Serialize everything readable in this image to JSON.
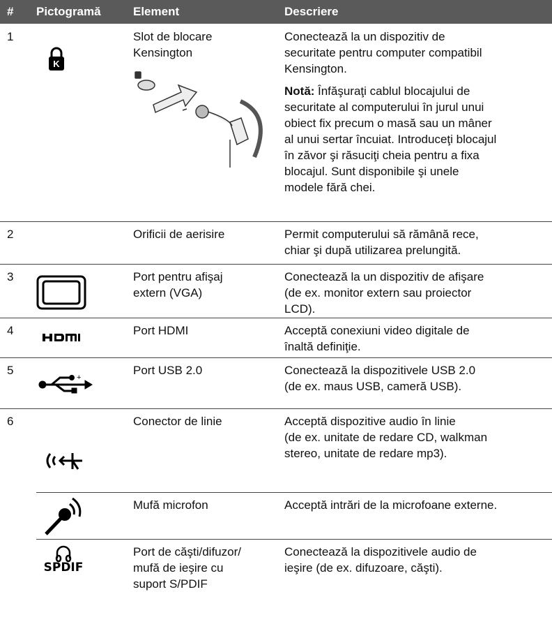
{
  "table": {
    "header": [
      "#",
      "Pictogramă",
      "Element",
      "Descriere"
    ],
    "rows": [
      {
        "number": 1,
        "element": [
          "Slot de blocare",
          "Kensington"
        ],
        "description": [
          "Conectează la un dispozitiv de",
          "securitate pentru computer compatibil",
          "Kensington."
        ],
        "note_label": "Notă:",
        "note": [
          "Înfăşuraţi cablul blocajului de",
          "securitate al computerului în jurul unui",
          "obiect fix precum o masă sau un mâner",
          "al unui sertar încuiat. Introduceţi blocajul",
          "în zăvor şi răsuciţi cheia pentru a fixa",
          "blocajul. Sunt disponibile şi unele",
          "modele fără chei."
        ]
      },
      {
        "number": 2,
        "element": [
          "Orificii de aerisire"
        ],
        "description": [
          "Permit computerului să rămână rece,",
          "chiar şi după utilizarea prelungită."
        ]
      },
      {
        "number": 3,
        "element": [
          "Port pentru afişaj",
          "extern (VGA)"
        ],
        "description": [
          "Conectează la un dispozitiv de afişare",
          "(de ex. monitor extern sau proiector",
          "LCD)."
        ]
      },
      {
        "number": 4,
        "element": [
          "Port HDMI"
        ],
        "description": [
          "Acceptă conexiuni video digitale de",
          "înaltă definiţie."
        ]
      },
      {
        "number": 5,
        "element": [
          "Port USB 2.0"
        ],
        "description": [
          "Conectează la dispozitivele USB 2.0",
          "(de ex. maus USB, cameră USB)."
        ]
      },
      {
        "number": 6,
        "element": [
          "Conector de linie"
        ],
        "description": [
          "Acceptă dispozitive audio în linie",
          "(de ex. unitate de redare CD, walkman",
          "stereo, unitate de redare mp3)."
        ]
      },
      {
        "element": [
          "Mufă microfon"
        ],
        "description": [
          "Acceptă intrări de la microfoane externe."
        ]
      },
      {
        "element": [
          "Port de căşti/difuzor/",
          "mufă de ieşire cu",
          "suport S/PDIF"
        ],
        "description": [
          "Conectează la dispozitivele audio de",
          "ieşire (de ex. difuzoare, căşti)."
        ],
        "icon_label": "SPDIF"
      }
    ]
  }
}
